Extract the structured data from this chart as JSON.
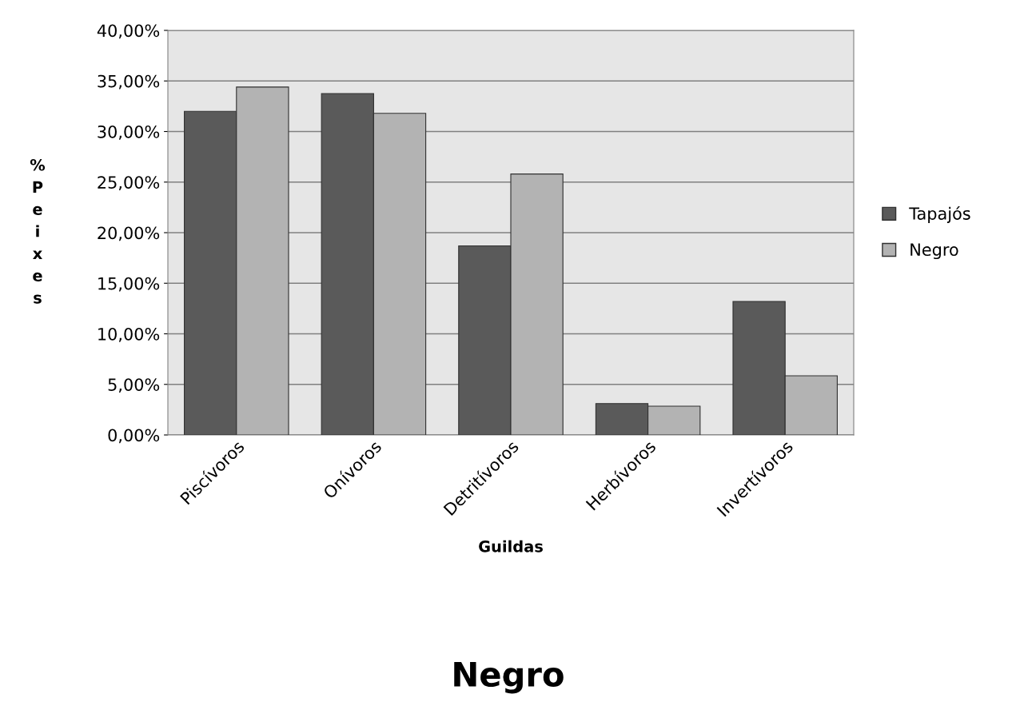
{
  "chart_data": {
    "type": "bar",
    "categories": [
      "Piscívoros",
      "Onívoros",
      "Detritívoros",
      "Herbívoros",
      "Invertívoros"
    ],
    "series": [
      {
        "name": "Tapajós",
        "color": "#5a5a5a",
        "values": [
          32.0,
          33.75,
          18.7,
          3.1,
          13.2
        ]
      },
      {
        "name": "Negro",
        "color": "#b3b3b3",
        "values": [
          34.4,
          31.8,
          25.8,
          2.85,
          5.85
        ]
      }
    ],
    "xlabel": "Guildas",
    "ylabel": "% Peixes",
    "ylim": [
      0,
      40
    ],
    "yticks": [
      {
        "value": 0,
        "label": "0,00%"
      },
      {
        "value": 5,
        "label": "5,00%"
      },
      {
        "value": 10,
        "label": "10,00%"
      },
      {
        "value": 15,
        "label": "15,00%"
      },
      {
        "value": 20,
        "label": "20,00%"
      },
      {
        "value": 25,
        "label": "25,00%"
      },
      {
        "value": 30,
        "label": "30,00%"
      },
      {
        "value": 35,
        "label": "35,00%"
      },
      {
        "value": 40,
        "label": "40,00%"
      }
    ],
    "grid": "y",
    "legend": "right",
    "annotations": [
      "Negro"
    ]
  }
}
